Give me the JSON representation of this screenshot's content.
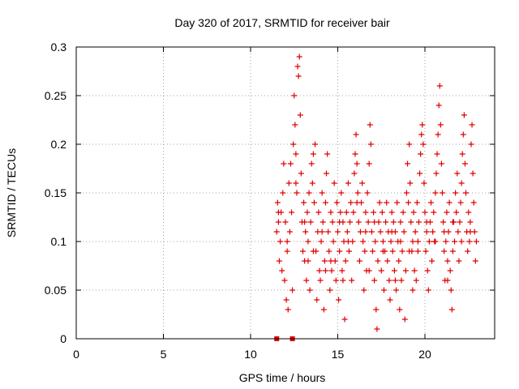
{
  "chart_data": {
    "type": "scatter",
    "title": "Day 320 of 2017, SRMTID for receiver bair",
    "xlabel": "GPS time / hours",
    "ylabel": "SRMTID / TECUs",
    "xlim": [
      0,
      24
    ],
    "ylim": [
      0,
      0.3
    ],
    "x_ticks": [
      0,
      5,
      10,
      15,
      20
    ],
    "x_tick_labels": [
      "0",
      "5",
      "10",
      "15",
      "20"
    ],
    "y_ticks": [
      0,
      0.05,
      0.1,
      0.15,
      0.2,
      0.25,
      0.3
    ],
    "y_tick_labels": [
      "0",
      "0.05",
      "0.1",
      "0.15",
      "0.2",
      "0.25",
      "0.3"
    ],
    "grid": true,
    "marker_color": "#e00000",
    "marker": "plus",
    "series": [
      {
        "points": [
          [
            11.5,
            0.11
          ],
          [
            11.55,
            0.14
          ],
          [
            11.6,
            0.12
          ],
          [
            11.65,
            0.08
          ],
          [
            11.7,
            0.1
          ],
          [
            11.75,
            0.13
          ],
          [
            11.8,
            0.07
          ],
          [
            11.85,
            0.15
          ],
          [
            11.9,
            0.18
          ],
          [
            11.95,
            0.06
          ],
          [
            12.0,
            0.12
          ],
          [
            12.05,
            0.04
          ],
          [
            12.1,
            0.09
          ],
          [
            12.15,
            0.03
          ],
          [
            12.2,
            0.16
          ],
          [
            12.25,
            0.11
          ],
          [
            12.3,
            0.18
          ],
          [
            12.35,
            0.13
          ],
          [
            12.4,
            0.05
          ],
          [
            12.45,
            0.2
          ],
          [
            12.5,
            0.25
          ],
          [
            12.55,
            0.22
          ],
          [
            12.6,
            0.19
          ],
          [
            12.65,
            0.15
          ],
          [
            12.7,
            0.28
          ],
          [
            12.75,
            0.27
          ],
          [
            12.8,
            0.29
          ],
          [
            12.85,
            0.23
          ],
          [
            12.9,
            0.17
          ],
          [
            12.95,
            0.12
          ],
          [
            13.0,
            0.09
          ],
          [
            13.05,
            0.14
          ],
          [
            13.1,
            0.08
          ],
          [
            13.15,
            0.11
          ],
          [
            13.2,
            0.06
          ],
          [
            13.25,
            0.13
          ],
          [
            13.3,
            0.1
          ],
          [
            13.35,
            0.15
          ],
          [
            13.4,
            0.05
          ],
          [
            13.45,
            0.12
          ],
          [
            13.5,
            0.18
          ],
          [
            13.55,
            0.16
          ],
          [
            13.6,
            0.19
          ],
          [
            13.65,
            0.14
          ],
          [
            13.7,
            0.2
          ],
          [
            13.75,
            0.09
          ],
          [
            13.8,
            0.04
          ],
          [
            13.85,
            0.11
          ],
          [
            13.9,
            0.13
          ],
          [
            13.95,
            0.07
          ],
          [
            14.0,
            0.06
          ],
          [
            14.05,
            0.1
          ],
          [
            14.1,
            0.15
          ],
          [
            14.15,
            0.12
          ],
          [
            14.2,
            0.03
          ],
          [
            14.25,
            0.08
          ],
          [
            14.3,
            0.14
          ],
          [
            14.35,
            0.17
          ],
          [
            14.4,
            0.19
          ],
          [
            14.45,
            0.11
          ],
          [
            14.5,
            0.09
          ],
          [
            14.55,
            0.05
          ],
          [
            14.6,
            0.13
          ],
          [
            14.65,
            0.07
          ],
          [
            14.7,
            0.12
          ],
          [
            14.75,
            0.1
          ],
          [
            14.8,
            0.16
          ],
          [
            14.85,
            0.08
          ],
          [
            14.9,
            0.06
          ],
          [
            14.95,
            0.14
          ],
          [
            15.0,
            0.11
          ],
          [
            15.05,
            0.04
          ],
          [
            15.1,
            0.09
          ],
          [
            15.15,
            0.13
          ],
          [
            15.2,
            0.15
          ],
          [
            15.25,
            0.07
          ],
          [
            15.3,
            0.12
          ],
          [
            15.35,
            0.1
          ],
          [
            15.4,
            0.02
          ],
          [
            15.45,
            0.08
          ],
          [
            15.5,
            0.13
          ],
          [
            15.55,
            0.11
          ],
          [
            15.6,
            0.16
          ],
          [
            15.65,
            0.09
          ],
          [
            15.7,
            0.12
          ],
          [
            15.75,
            0.14
          ],
          [
            15.8,
            0.06
          ],
          [
            15.85,
            0.1
          ],
          [
            15.9,
            0.13
          ],
          [
            15.95,
            0.17
          ],
          [
            16.0,
            0.19
          ],
          [
            16.05,
            0.21
          ],
          [
            16.1,
            0.18
          ],
          [
            16.15,
            0.15
          ],
          [
            16.2,
            0.12
          ],
          [
            16.25,
            0.08
          ],
          [
            16.3,
            0.11
          ],
          [
            16.35,
            0.14
          ],
          [
            16.4,
            0.16
          ],
          [
            16.45,
            0.1
          ],
          [
            16.5,
            0.05
          ],
          [
            16.55,
            0.09
          ],
          [
            16.6,
            0.13
          ],
          [
            16.65,
            0.07
          ],
          [
            16.7,
            0.15
          ],
          [
            16.75,
            0.12
          ],
          [
            16.8,
            0.18
          ],
          [
            16.85,
            0.22
          ],
          [
            16.9,
            0.2
          ],
          [
            16.95,
            0.11
          ],
          [
            17.0,
            0.09
          ],
          [
            17.05,
            0.13
          ],
          [
            17.1,
            0.06
          ],
          [
            17.15,
            0.1
          ],
          [
            17.2,
            0.03
          ],
          [
            17.25,
            0.01
          ],
          [
            17.3,
            0.08
          ],
          [
            17.35,
            0.12
          ],
          [
            17.4,
            0.14
          ],
          [
            17.45,
            0.11
          ],
          [
            17.5,
            0.07
          ],
          [
            17.55,
            0.13
          ],
          [
            17.6,
            0.1
          ],
          [
            17.65,
            0.05
          ],
          [
            17.7,
            0.09
          ],
          [
            17.75,
            0.12
          ],
          [
            17.8,
            0.14
          ],
          [
            17.85,
            0.08
          ],
          [
            17.9,
            0.11
          ],
          [
            17.95,
            0.06
          ],
          [
            18.0,
            0.04
          ],
          [
            18.05,
            0.1
          ],
          [
            18.1,
            0.13
          ],
          [
            18.15,
            0.09
          ],
          [
            18.2,
            0.12
          ],
          [
            18.25,
            0.07
          ],
          [
            18.3,
            0.11
          ],
          [
            18.35,
            0.05
          ],
          [
            18.4,
            0.14
          ],
          [
            18.45,
            0.1
          ],
          [
            18.5,
            0.08
          ],
          [
            18.55,
            0.03
          ],
          [
            18.6,
            0.12
          ],
          [
            18.65,
            0.06
          ],
          [
            18.7,
            0.09
          ],
          [
            18.75,
            0.13
          ],
          [
            18.8,
            0.11
          ],
          [
            18.85,
            0.02
          ],
          [
            18.9,
            0.07
          ],
          [
            18.95,
            0.15
          ],
          [
            19.0,
            0.18
          ],
          [
            19.05,
            0.14
          ],
          [
            19.1,
            0.2
          ],
          [
            19.15,
            0.16
          ],
          [
            19.2,
            0.12
          ],
          [
            19.25,
            0.09
          ],
          [
            19.3,
            0.1
          ],
          [
            19.35,
            0.13
          ],
          [
            19.4,
            0.07
          ],
          [
            19.45,
            0.11
          ],
          [
            19.5,
            0.06
          ],
          [
            19.55,
            0.14
          ],
          [
            19.6,
            0.09
          ],
          [
            19.65,
            0.12
          ],
          [
            19.7,
            0.17
          ],
          [
            19.75,
            0.19
          ],
          [
            19.8,
            0.21
          ],
          [
            19.85,
            0.22
          ],
          [
            19.9,
            0.2
          ],
          [
            19.95,
            0.16
          ],
          [
            20.0,
            0.13
          ],
          [
            20.05,
            0.09
          ],
          [
            20.1,
            0.11
          ],
          [
            20.15,
            0.07
          ],
          [
            20.2,
            0.05
          ],
          [
            20.25,
            0.1
          ],
          [
            20.3,
            0.12
          ],
          [
            20.35,
            0.14
          ],
          [
            20.4,
            0.08
          ],
          [
            20.45,
            0.11
          ],
          [
            20.5,
            0.13
          ],
          [
            20.55,
            0.1
          ],
          [
            20.6,
            0.15
          ],
          [
            20.65,
            0.17
          ],
          [
            20.7,
            0.19
          ],
          [
            20.75,
            0.21
          ],
          [
            20.8,
            0.24
          ],
          [
            20.85,
            0.26
          ],
          [
            20.9,
            0.22
          ],
          [
            20.95,
            0.18
          ],
          [
            21.0,
            0.15
          ],
          [
            21.05,
            0.12
          ],
          [
            21.1,
            0.09
          ],
          [
            21.15,
            0.06
          ],
          [
            21.2,
            0.1
          ],
          [
            21.25,
            0.13
          ],
          [
            21.3,
            0.08
          ],
          [
            21.35,
            0.11
          ],
          [
            21.4,
            0.14
          ],
          [
            21.45,
            0.07
          ],
          [
            21.5,
            0.05
          ],
          [
            21.55,
            0.03
          ],
          [
            21.6,
            0.09
          ],
          [
            21.65,
            0.12
          ],
          [
            21.7,
            0.1
          ],
          [
            21.75,
            0.15
          ],
          [
            21.8,
            0.13
          ],
          [
            21.85,
            0.17
          ],
          [
            21.9,
            0.11
          ],
          [
            21.95,
            0.08
          ],
          [
            22.0,
            0.12
          ],
          [
            22.05,
            0.14
          ],
          [
            22.1,
            0.16
          ],
          [
            22.15,
            0.19
          ],
          [
            22.2,
            0.21
          ],
          [
            22.25,
            0.23
          ],
          [
            22.3,
            0.18
          ],
          [
            22.35,
            0.15
          ],
          [
            22.4,
            0.11
          ],
          [
            22.45,
            0.09
          ],
          [
            22.5,
            0.13
          ],
          [
            22.55,
            0.1
          ],
          [
            22.6,
            0.12
          ],
          [
            22.65,
            0.2
          ],
          [
            22.7,
            0.22
          ],
          [
            22.75,
            0.17
          ],
          [
            22.8,
            0.14
          ],
          [
            22.85,
            0.11
          ],
          [
            22.9,
            0.08
          ],
          [
            22.95,
            0.1
          ],
          [
            11.6,
            0.13
          ],
          [
            12.1,
            0.1
          ],
          [
            12.6,
            0.16
          ],
          [
            13.1,
            0.12
          ],
          [
            13.6,
            0.09
          ],
          [
            14.1,
            0.11
          ],
          [
            14.6,
            0.08
          ],
          [
            15.1,
            0.12
          ],
          [
            15.6,
            0.1
          ],
          [
            16.1,
            0.14
          ],
          [
            16.6,
            0.11
          ],
          [
            17.1,
            0.12
          ],
          [
            17.6,
            0.09
          ],
          [
            18.1,
            0.11
          ],
          [
            18.6,
            0.1
          ],
          [
            19.1,
            0.09
          ],
          [
            19.6,
            0.1
          ],
          [
            20.1,
            0.12
          ],
          [
            20.6,
            0.1
          ],
          [
            21.1,
            0.11
          ],
          [
            21.6,
            0.12
          ],
          [
            22.1,
            0.1
          ],
          [
            22.6,
            0.11
          ],
          [
            15.3,
            0.06
          ],
          [
            16.8,
            0.07
          ],
          [
            18.3,
            0.06
          ],
          [
            19.3,
            0.05
          ],
          [
            21.3,
            0.06
          ],
          [
            14.3,
            0.07
          ],
          [
            13.3,
            0.08
          ]
        ]
      }
    ],
    "extra_square_markers": [
      [
        11.5,
        0.0
      ],
      [
        12.4,
        0.0
      ]
    ]
  }
}
